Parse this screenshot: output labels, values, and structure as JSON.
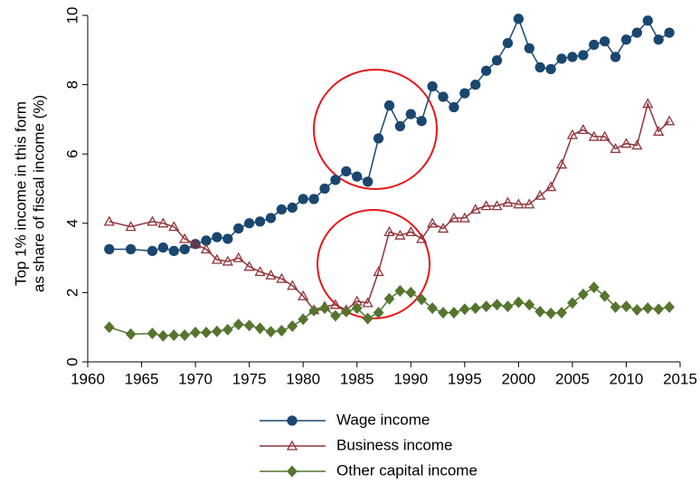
{
  "chart_data": {
    "type": "line",
    "y_label": [
      "Top 1% income in this form",
      "as share of fiscal income (%)"
    ],
    "x": [
      1962,
      1964,
      1966,
      1967,
      1968,
      1969,
      1970,
      1971,
      1972,
      1973,
      1974,
      1975,
      1976,
      1977,
      1978,
      1979,
      1980,
      1981,
      1982,
      1983,
      1984,
      1985,
      1986,
      1987,
      1988,
      1989,
      1990,
      1991,
      1992,
      1993,
      1994,
      1995,
      1996,
      1997,
      1998,
      1999,
      2000,
      2001,
      2002,
      2003,
      2004,
      2005,
      2006,
      2007,
      2008,
      2009,
      2010,
      2011,
      2012,
      2013,
      2014
    ],
    "series": [
      {
        "name": "Wage income",
        "color": "#1a476f",
        "marker": "circle",
        "values": [
          3.25,
          3.25,
          3.2,
          3.3,
          3.2,
          3.25,
          3.4,
          3.5,
          3.6,
          3.55,
          3.85,
          4.0,
          4.05,
          4.15,
          4.4,
          4.45,
          4.7,
          4.7,
          5.0,
          5.25,
          5.5,
          5.35,
          5.2,
          6.45,
          7.4,
          6.8,
          7.15,
          6.95,
          7.95,
          7.65,
          7.35,
          7.75,
          8.0,
          8.4,
          8.7,
          9.2,
          9.9,
          9.05,
          8.5,
          8.45,
          8.75,
          8.8,
          8.85,
          9.15,
          9.25,
          8.8,
          9.3,
          9.5,
          9.85,
          9.3,
          9.5
        ]
      },
      {
        "name": "Business income",
        "color": "#90353b",
        "marker": "triangle",
        "values": [
          4.05,
          3.9,
          4.05,
          4.0,
          3.9,
          3.55,
          3.4,
          3.25,
          2.95,
          2.9,
          3.0,
          2.75,
          2.6,
          2.5,
          2.4,
          2.2,
          1.9,
          1.5,
          1.6,
          1.65,
          1.5,
          1.75,
          1.7,
          2.6,
          3.75,
          3.65,
          3.75,
          3.55,
          4.0,
          3.85,
          4.15,
          4.15,
          4.4,
          4.5,
          4.5,
          4.6,
          4.55,
          4.55,
          4.8,
          5.05,
          5.7,
          6.55,
          6.7,
          6.5,
          6.5,
          6.15,
          6.3,
          6.25,
          7.45,
          6.65,
          6.95
        ]
      },
      {
        "name": "Other capital income",
        "color": "#55752f",
        "marker": "diamond",
        "values": [
          1.0,
          0.8,
          0.82,
          0.75,
          0.77,
          0.77,
          0.85,
          0.85,
          0.88,
          0.93,
          1.08,
          1.05,
          0.97,
          0.87,
          0.9,
          1.03,
          1.23,
          1.48,
          1.55,
          1.33,
          1.45,
          1.55,
          1.25,
          1.42,
          1.82,
          2.05,
          2.0,
          1.8,
          1.55,
          1.42,
          1.42,
          1.52,
          1.55,
          1.6,
          1.65,
          1.6,
          1.72,
          1.65,
          1.45,
          1.4,
          1.42,
          1.7,
          1.95,
          2.15,
          1.9,
          1.58,
          1.6,
          1.5,
          1.55,
          1.52,
          1.58
        ]
      }
    ],
    "xlim": [
      1960,
      2015
    ],
    "xticks": [
      1960,
      1965,
      1970,
      1975,
      1980,
      1985,
      1990,
      1995,
      2000,
      2005,
      2010,
      2015
    ],
    "ylim": [
      0,
      10
    ],
    "yticks": [
      0,
      2,
      4,
      6,
      8,
      10
    ],
    "grid": false
  }
}
